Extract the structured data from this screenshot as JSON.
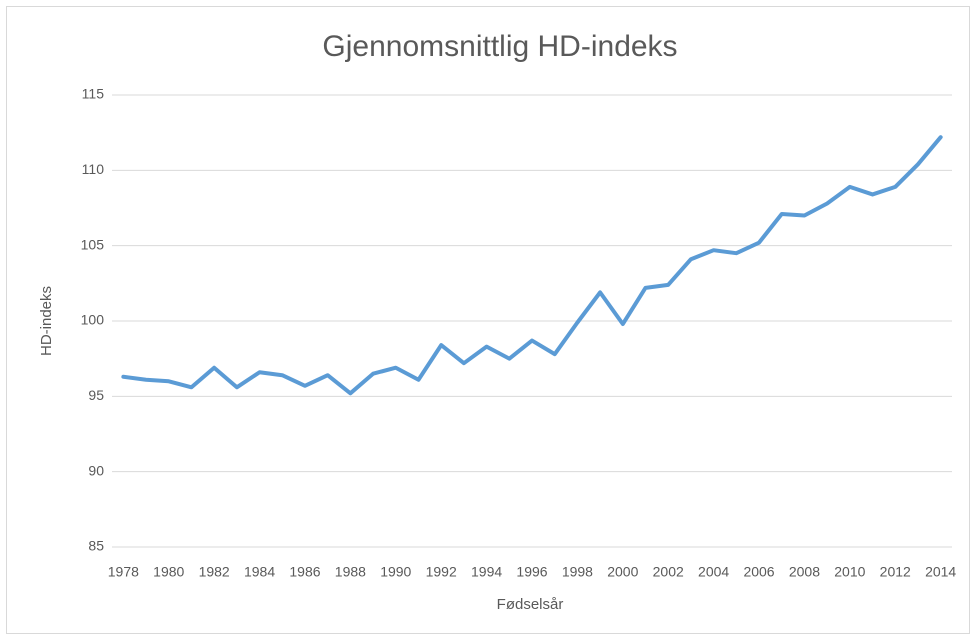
{
  "chart_data": {
    "type": "line",
    "title": "Gjennomsnittlig HD-indeks",
    "x_label": "Fødselsår",
    "y_label": "HD-indeks",
    "categories": [
      "1978",
      null,
      "1980",
      null,
      "1982",
      null,
      "1984",
      null,
      "1986",
      null,
      "1988",
      null,
      "1990",
      null,
      "1992",
      null,
      "1994",
      null,
      "1996",
      null,
      "1998",
      null,
      "2000",
      null,
      "2002",
      null,
      "2004",
      null,
      "2006",
      null,
      "2008",
      null,
      "2010",
      null,
      "2012",
      null,
      "2014"
    ],
    "values": [
      96.3,
      96.1,
      96.0,
      95.6,
      96.9,
      95.6,
      96.6,
      96.4,
      95.7,
      96.4,
      95.2,
      96.5,
      96.9,
      96.1,
      98.4,
      97.2,
      98.3,
      97.5,
      98.7,
      97.8,
      99.9,
      101.9,
      99.8,
      102.2,
      102.4,
      104.1,
      104.7,
      104.5,
      105.2,
      107.1,
      107.0,
      107.8,
      108.9,
      108.4,
      108.9,
      110.4,
      112.2
    ],
    "color": "#5b9bd5",
    "ylim": [
      85,
      115
    ],
    "yticks": [
      85,
      90,
      95,
      100,
      105,
      110,
      115
    ],
    "grid": true
  }
}
